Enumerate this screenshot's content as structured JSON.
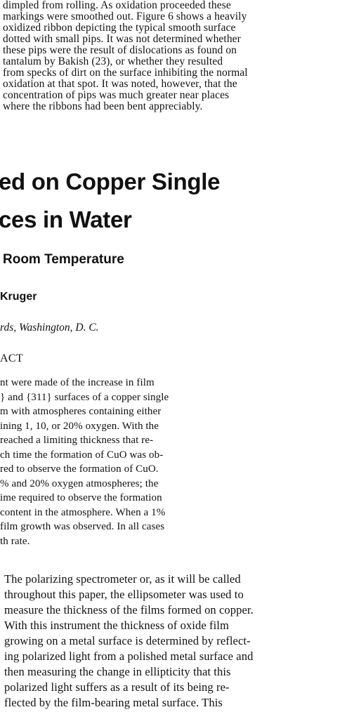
{
  "top_paragraph": [
    "dimpled from rolling. As oxidation proceeded these",
    "markings were smoothed out. Figure 6 shows a heavily",
    "oxidized ribbon depicting the typical smooth surface",
    "dotted with small pips. It was not determined whether",
    "these pips were the result of dislocations as found on",
    "tantalum by Bakish (23), or whether they resulted",
    "from specks of dirt on the surface inhibiting the normal",
    "oxidation at that spot. It was noted, however, that the",
    "concentration of pips was much greater near places",
    "where the ribbons had been bent appreciably."
  ],
  "title": [
    "ed on Copper Single",
    "ces in Water"
  ],
  "subtitle": "Room Temperature",
  "author": "Kruger",
  "affiliation": "rds, Washington, D. C.",
  "abstract_heading": "ACT",
  "abstract_lines": [
    "nt were made of the increase in film",
    "} and {311} surfaces of a copper single",
    "m with atmospheres containing either",
    "ining 1, 10, or 20% oxygen. With the",
    "reached a limiting thickness that re-",
    "ch time the formation of CuO was ob-",
    "red to observe the formation of CuO.",
    "% and 20% oxygen atmospheres; the",
    "ime required to observe the formation",
    "content in the atmosphere. When a 1%",
    "film growth was observed. In all cases",
    "th rate."
  ],
  "body_lines": [
    "The polarizing spectrometer or, as it will be called",
    "throughout this paper, the ellipsometer was used to",
    "measure the thickness of the films formed on copper.",
    "With this instrument the thickness of oxide film",
    "growing on a metal surface is determined by reflect-",
    "ing polarized light from a polished metal surface and",
    "then measuring the change in ellipticity that this",
    "polarized light suffers as a result of its being re-",
    "flected by the film-bearing metal surface. This"
  ]
}
